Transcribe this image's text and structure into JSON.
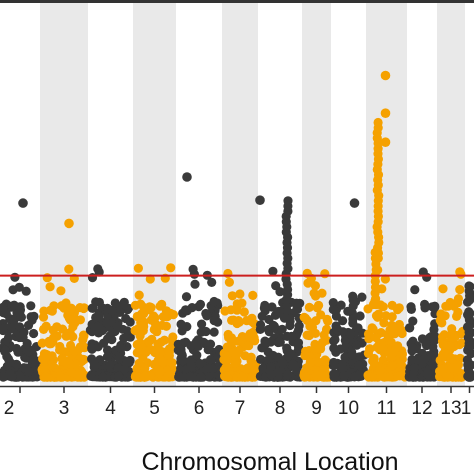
{
  "chart_data": {
    "type": "scatter",
    "subtype": "manhattan",
    "title": "",
    "xlabel": "Chromosomal Location",
    "ylabel": "",
    "visible_chromosomes": [
      "2",
      "3",
      "4",
      "5",
      "6",
      "7",
      "8",
      "9",
      "10",
      "11",
      "12",
      "13",
      "1"
    ],
    "alternating_band_colors": [
      "#ffffff",
      "#e9e9e9"
    ],
    "point_colors": {
      "odd": "#f5a100",
      "even": "#3a3a3a"
    },
    "threshold_line": {
      "color": "#cc1f1f"
    },
    "axis_color": "#333333",
    "grid": false,
    "notable_points": [
      {
        "chromosome": "2",
        "value": 6.1,
        "color": "dark"
      },
      {
        "chromosome": "3",
        "value": 5.4,
        "color": "orange"
      },
      {
        "chromosome": "6",
        "value": 7.0,
        "color": "dark"
      },
      {
        "chromosome": "8",
        "value": 6.2,
        "color": "dark"
      },
      {
        "chromosome": "10",
        "value": 6.1,
        "color": "dark"
      },
      {
        "chromosome": "11",
        "value": 10.5,
        "color": "orange"
      },
      {
        "chromosome": "11",
        "value": 9.2,
        "color": "orange"
      },
      {
        "chromosome": "11",
        "value": 8.2,
        "color": "orange"
      }
    ]
  }
}
